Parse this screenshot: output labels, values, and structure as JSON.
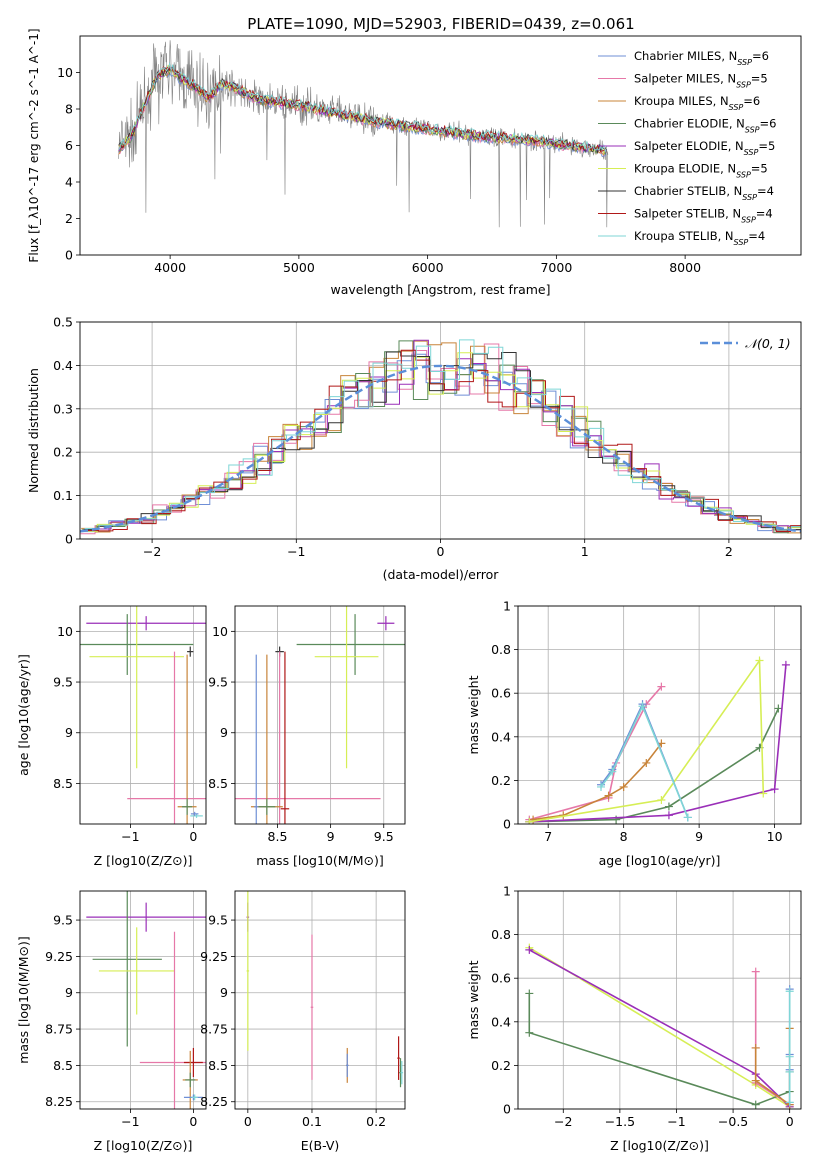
{
  "figure_title": "PLATE=1090, MJD=52903, FIBERID=0439, z=0.061",
  "models": [
    {
      "name": "Chabrier MILES",
      "nssp": "6",
      "color": "#6f8fd6"
    },
    {
      "name": "Salpeter MILES",
      "nssp": "5",
      "color": "#e678a8"
    },
    {
      "name": "Kroupa MILES",
      "nssp": "6",
      "color": "#c8843a"
    },
    {
      "name": "Chabrier ELODIE",
      "nssp": "6",
      "color": "#5a8a5a"
    },
    {
      "name": "Salpeter ELODIE",
      "nssp": "5",
      "color": "#9a2fb8"
    },
    {
      "name": "Kroupa ELODIE",
      "nssp": "5",
      "color": "#d6ee55"
    },
    {
      "name": "Chabrier STELIB",
      "nssp": "4",
      "color": "#333333"
    },
    {
      "name": "Salpeter STELIB",
      "nssp": "4",
      "color": "#b01818"
    },
    {
      "name": "Kroupa STELIB",
      "nssp": "4",
      "color": "#7fd6d6"
    }
  ],
  "chart_data": [
    {
      "id": "spectrum",
      "type": "line",
      "xlabel": "wavelength [Angstrom, rest frame]",
      "ylabel": "Flux [f_λ10^-17 erg cm^-2 s^-1 A^-1]",
      "xlim": [
        3300,
        8900
      ],
      "ylim": [
        0,
        12
      ],
      "xticks": [
        4000,
        5000,
        6000,
        7000,
        8000
      ],
      "yticks": [
        0,
        2,
        4,
        6,
        8,
        10
      ],
      "legend": "top-right",
      "data_color": "#808080",
      "continuum": {
        "x": [
          3600,
          3700,
          3800,
          3900,
          4000,
          4100,
          4200,
          4300,
          4400,
          4500,
          4600,
          4700,
          4800,
          5000,
          5200,
          5400,
          5600,
          5800,
          6000,
          6200,
          6400,
          6600,
          6800,
          7000,
          7200,
          7400
        ],
        "y": [
          5.8,
          6.5,
          8.2,
          9.8,
          10.2,
          9.6,
          9.2,
          8.6,
          9.4,
          9.2,
          8.8,
          8.5,
          8.4,
          8.2,
          7.9,
          7.6,
          7.3,
          7.1,
          6.9,
          6.7,
          6.5,
          6.4,
          6.3,
          6.1,
          5.9,
          5.7
        ]
      }
    },
    {
      "id": "residuals",
      "type": "line",
      "xlabel": "(data-model)/error",
      "ylabel": "Normed distribution",
      "xlim": [
        -2.5,
        2.5
      ],
      "ylim": [
        0,
        0.5
      ],
      "xticks": [
        -2,
        -1,
        0,
        1,
        2
      ],
      "yticks": [
        0.0,
        0.1,
        0.2,
        0.3,
        0.4,
        0.5
      ],
      "grid": true,
      "legend": "top-right",
      "gaussian_label": "𝒩(0, 1)",
      "gaussian_color": "#5b8fd9"
    },
    {
      "id": "age-vs-Z",
      "type": "scatter",
      "xlabel": "Z [log10(Z/Z⊙)]",
      "ylabel": "age  [log10(age/yr)]",
      "xlim": [
        -1.8,
        0.2
      ],
      "ylim": [
        8.1,
        10.25
      ],
      "xticks": [
        -1,
        0
      ],
      "yticks": [
        8.5,
        9.0,
        9.5,
        10.0
      ],
      "grid": true,
      "points": [
        {
          "x": -0.75,
          "y": 10.08,
          "xerr": 0.95,
          "yerr": 0.07,
          "color": "#9a2fb8"
        },
        {
          "x": -1.05,
          "y": 9.87,
          "xerr": 1.05,
          "yerr": 0.3,
          "color": "#5a8a5a"
        },
        {
          "x": -0.9,
          "y": 9.75,
          "xerr": 0.75,
          "yerr": 1.1,
          "color": "#d6ee55"
        },
        {
          "x": -0.05,
          "y": 9.8,
          "xerr": 0.05,
          "yerr": 0.05,
          "color": "#333333"
        },
        {
          "x": -0.3,
          "y": 8.35,
          "xerr": 0.75,
          "yerr": 1.45,
          "color": "#e678a8"
        },
        {
          "x": -0.1,
          "y": 8.27,
          "xerr": 0.15,
          "yerr": 1.5,
          "color": "#c8843a"
        },
        {
          "x": -0.1,
          "y": 8.27,
          "xerr": 0.08,
          "yerr": 0.08,
          "color": "#5a8a5a"
        },
        {
          "x": 0.05,
          "y": 8.18,
          "xerr": 0.1,
          "yerr": 0.02,
          "color": "#7fd6d6"
        },
        {
          "x": 0.02,
          "y": 8.2,
          "xerr": 0.06,
          "yerr": 0.02,
          "color": "#6f8fd6"
        }
      ]
    },
    {
      "id": "age-vs-mass",
      "type": "scatter",
      "xlabel": "mass [log10(M/M⊙)]",
      "ylabel": "",
      "xlim": [
        8.1,
        9.7
      ],
      "ylim": [
        8.1,
        10.25
      ],
      "xticks": [
        8.5,
        9.0,
        9.5
      ],
      "yticks": [
        8.5,
        9.0,
        9.5,
        10.0
      ],
      "grid": true,
      "points": [
        {
          "x": 9.52,
          "y": 10.08,
          "xerr": 0.08,
          "yerr": 0.07,
          "color": "#9a2fb8"
        },
        {
          "x": 9.23,
          "y": 9.87,
          "xerr": 0.55,
          "yerr": 0.3,
          "color": "#5a8a5a"
        },
        {
          "x": 9.15,
          "y": 9.75,
          "xerr": 0.3,
          "yerr": 1.1,
          "color": "#d6ee55"
        },
        {
          "x": 8.52,
          "y": 9.8,
          "xerr": 0.04,
          "yerr": 0.05,
          "color": "#333333"
        },
        {
          "x": 8.52,
          "y": 8.35,
          "xerr": 0.95,
          "yerr": 1.45,
          "color": "#e678a8"
        },
        {
          "x": 8.4,
          "y": 8.27,
          "xerr": 0.15,
          "yerr": 1.5,
          "color": "#c8843a"
        },
        {
          "x": 8.4,
          "y": 8.27,
          "xerr": 0.08,
          "yerr": 0.08,
          "color": "#5a8a5a"
        },
        {
          "x": 8.57,
          "y": 8.25,
          "xerr": 0.04,
          "yerr": 1.55,
          "color": "#b01818"
        },
        {
          "x": 8.3,
          "y": 8.27,
          "xerr": 0.02,
          "yerr": 1.5,
          "color": "#6f8fd6"
        }
      ]
    },
    {
      "id": "weight-vs-age",
      "type": "line",
      "xlabel": "age  [log10(age/yr)]",
      "ylabel": "mass weight",
      "xlim": [
        6.6,
        10.35
      ],
      "ylim": [
        0,
        1.0
      ],
      "xticks": [
        7,
        8,
        9,
        10
      ],
      "yticks": [
        0.0,
        0.2,
        0.4,
        0.6,
        0.8,
        1.0
      ],
      "grid": true,
      "series": [
        {
          "color": "#e678a8",
          "x": [
            6.75,
            7.8,
            7.9,
            8.3,
            8.5
          ],
          "y": [
            0.02,
            0.12,
            0.28,
            0.55,
            0.63
          ]
        },
        {
          "color": "#c8843a",
          "x": [
            6.8,
            7.2,
            7.8,
            8.0,
            8.3,
            8.5
          ],
          "y": [
            0.02,
            0.04,
            0.13,
            0.17,
            0.28,
            0.37
          ]
        },
        {
          "color": "#5a8a5a",
          "x": [
            6.75,
            7.9,
            8.6,
            9.8,
            10.05
          ],
          "y": [
            0.01,
            0.02,
            0.08,
            0.35,
            0.53
          ]
        },
        {
          "color": "#9a2fb8",
          "x": [
            6.75,
            8.6,
            10.0,
            10.15
          ],
          "y": [
            0.01,
            0.04,
            0.16,
            0.73
          ]
        },
        {
          "color": "#d6ee55",
          "x": [
            6.75,
            8.5,
            9.8,
            9.85
          ],
          "y": [
            0.01,
            0.11,
            0.75,
            0.14
          ]
        },
        {
          "color": "#6f8fd6",
          "x": [
            7.7,
            7.85,
            8.25,
            8.85
          ],
          "y": [
            0.18,
            0.25,
            0.55,
            0.03
          ]
        },
        {
          "color": "#7fd6d6",
          "x": [
            7.7,
            7.85,
            8.25,
            8.85
          ],
          "y": [
            0.17,
            0.24,
            0.54,
            0.03
          ]
        }
      ]
    },
    {
      "id": "mass-vs-Z",
      "type": "scatter",
      "xlabel": "Z [log10(Z/Z⊙)]",
      "ylabel": "mass [log10(M/M⊙)]",
      "xlim": [
        -1.8,
        0.2
      ],
      "ylim": [
        8.2,
        9.7
      ],
      "xticks": [
        -1,
        0
      ],
      "yticks": [
        8.25,
        8.5,
        8.75,
        9.0,
        9.25,
        9.5
      ],
      "grid": true,
      "points": [
        {
          "x": -0.75,
          "y": 9.52,
          "xerr": 0.95,
          "yerr": 0.1,
          "color": "#9a2fb8"
        },
        {
          "x": -1.05,
          "y": 9.23,
          "xerr": 0.55,
          "yerr": 0.6,
          "color": "#5a8a5a"
        },
        {
          "x": -0.9,
          "y": 9.15,
          "xerr": 0.6,
          "yerr": 0.3,
          "color": "#d6ee55"
        },
        {
          "x": -0.3,
          "y": 8.52,
          "xerr": 0.55,
          "yerr": 0.9,
          "color": "#e678a8"
        },
        {
          "x": 0.0,
          "y": 8.52,
          "xerr": 0.15,
          "yerr": 0.1,
          "color": "#b01818"
        },
        {
          "x": -0.05,
          "y": 8.4,
          "xerr": 0.12,
          "yerr": 0.2,
          "color": "#c8843a"
        },
        {
          "x": -0.05,
          "y": 8.4,
          "xerr": 0.08,
          "yerr": 0.05,
          "color": "#5a8a5a"
        },
        {
          "x": 0.0,
          "y": 8.28,
          "xerr": 0.15,
          "yerr": 0.02,
          "color": "#6f8fd6"
        },
        {
          "x": 0.02,
          "y": 8.28,
          "xerr": 0.05,
          "yerr": 0.02,
          "color": "#7fd6d6"
        }
      ]
    },
    {
      "id": "mass-vs-EBV",
      "type": "scatter",
      "xlabel": "E(B-V)",
      "ylabel": "",
      "xlim": [
        -0.02,
        0.245
      ],
      "ylim": [
        8.2,
        9.7
      ],
      "xticks": [
        0.0,
        0.1,
        0.2
      ],
      "yticks": [
        8.25,
        8.5,
        8.75,
        9.0,
        9.25,
        9.5
      ],
      "grid": true,
      "points": [
        {
          "x": 0.0,
          "y": 9.52,
          "xerr": 0.002,
          "yerr": 0.1,
          "color": "#9a2fb8"
        },
        {
          "x": 0.0,
          "y": 9.15,
          "xerr": 0.002,
          "yerr": 0.55,
          "color": "#d6ee55"
        },
        {
          "x": 0.1,
          "y": 8.9,
          "xerr": 0.002,
          "yerr": 0.5,
          "color": "#e678a8"
        },
        {
          "x": 0.155,
          "y": 8.5,
          "xerr": 0.002,
          "yerr": 0.12,
          "color": "#c8843a"
        },
        {
          "x": 0.155,
          "y": 8.5,
          "xerr": 0.002,
          "yerr": 0.08,
          "color": "#6f8fd6"
        },
        {
          "x": 0.235,
          "y": 8.55,
          "xerr": 0.002,
          "yerr": 0.15,
          "color": "#b01818"
        },
        {
          "x": 0.238,
          "y": 8.45,
          "xerr": 0.002,
          "yerr": 0.1,
          "color": "#5a8a5a"
        },
        {
          "x": 0.24,
          "y": 8.45,
          "xerr": 0.002,
          "yerr": 0.08,
          "color": "#7fd6d6"
        }
      ]
    },
    {
      "id": "weight-vs-Z",
      "type": "line",
      "xlabel": "Z [log10(Z/Z⊙)]",
      "ylabel": "mass weight",
      "xlim": [
        -2.4,
        0.1
      ],
      "ylim": [
        0,
        1.0
      ],
      "xticks": [
        -2.0,
        -1.5,
        -1.0,
        -0.5,
        0.0
      ],
      "yticks": [
        0.0,
        0.2,
        0.4,
        0.6,
        0.8,
        1.0
      ],
      "grid": true,
      "series": [
        {
          "color": "#d6ee55",
          "x": [
            -2.3,
            -0.3,
            0.0
          ],
          "y": [
            0.74,
            0.11,
            0.01
          ]
        },
        {
          "color": "#9a2fb8",
          "x": [
            -2.3,
            -0.3,
            0.0
          ],
          "y": [
            0.73,
            0.16,
            0.01
          ]
        },
        {
          "color": "#5a8a5a",
          "x": [
            -2.3,
            -2.3,
            -0.3,
            0.0,
            0.0
          ],
          "y": [
            0.53,
            0.35,
            0.02,
            0.08,
            0.17
          ]
        },
        {
          "color": "#e678a8",
          "x": [
            -0.3,
            -0.3,
            -0.3,
            0.0
          ],
          "y": [
            0.63,
            0.28,
            0.12,
            0.02
          ]
        },
        {
          "color": "#c8843a",
          "x": [
            -0.3,
            -0.3,
            0.0,
            0.0
          ],
          "y": [
            0.28,
            0.13,
            0.02,
            0.37
          ]
        },
        {
          "color": "#6f8fd6",
          "x": [
            0.0,
            0.0,
            0.0,
            0.0
          ],
          "y": [
            0.03,
            0.18,
            0.25,
            0.55
          ]
        },
        {
          "color": "#7fd6d6",
          "x": [
            0.0,
            0.0,
            0.0,
            0.0
          ],
          "y": [
            0.03,
            0.17,
            0.24,
            0.54
          ]
        }
      ]
    }
  ]
}
